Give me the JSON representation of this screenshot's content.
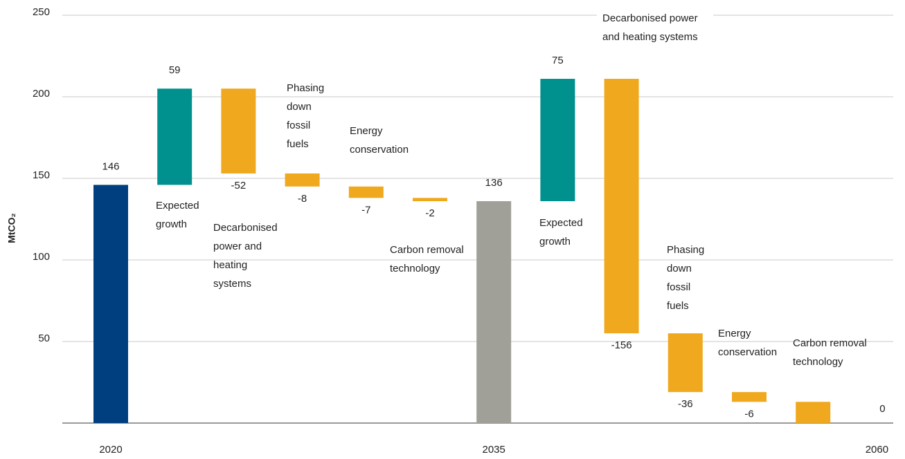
{
  "chart_data": {
    "type": "waterfall",
    "y_label": "MtCO₂",
    "categories": [
      "2020",
      null,
      null,
      null,
      null,
      null,
      "2035",
      null,
      null,
      null,
      null,
      null,
      "2060"
    ],
    "values": [
      146,
      59,
      -52,
      -8,
      -7,
      -2,
      136,
      75,
      -156,
      -36,
      -6,
      -13,
      0
    ],
    "value_labels": [
      "146",
      "59",
      "-52",
      "-8",
      "-7",
      "-2",
      "136",
      "75",
      "-156",
      "-36",
      "-6",
      null,
      "0"
    ],
    "measure": [
      "total",
      "relative",
      "relative",
      "relative",
      "relative",
      "relative",
      "total",
      "relative",
      "relative",
      "relative",
      "relative",
      "relative",
      "total"
    ],
    "step_labels": [
      null,
      "Expected\ngrowth",
      "Decarbonised\npower and\nheating\nsystems",
      "Phasing\ndown\nfossil\nfuels",
      "Energy\nconservation",
      "Carbon removal\ntechnology",
      null,
      "Expected\ngrowth",
      "Decarbonised power\nand heating systems",
      "Phasing\ndown\nfossil\nfuels",
      "Energy\nconservation",
      "Carbon removal\ntechnology",
      null
    ],
    "colors": [
      "#003f7f",
      "#00918f",
      "#f0a81e",
      "#f0a81e",
      "#f0a81e",
      "#f0a81e",
      "#a09f98",
      "#00918f",
      "#f0a81e",
      "#f0a81e",
      "#f0a81e",
      "#f0a81e",
      "#f0a81e"
    ],
    "ylim": [
      0,
      250
    ],
    "yticks": [
      50,
      100,
      150,
      200,
      250
    ],
    "grid": true
  }
}
